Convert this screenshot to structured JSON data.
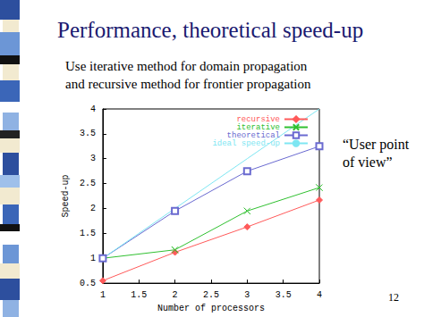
{
  "chart_data": {
    "type": "line",
    "title": "Performance, theoretical speed-up",
    "subtitle": [
      "Use iterative method for domain propagation",
      "and recursive method for frontier propagation"
    ],
    "x_label": "Number of processors",
    "y_label": "Speed-up",
    "annotations": [
      "“User point of view”",
      "12"
    ],
    "x": [
      1,
      2,
      3,
      4
    ],
    "series": [
      {
        "name": "recursive",
        "color": "#ff5a5a",
        "marker": "diamond",
        "values": [
          0.55,
          1.12,
          1.63,
          2.17
        ]
      },
      {
        "name": "iterative",
        "color": "#30c030",
        "marker": "cross",
        "values": [
          1.0,
          1.17,
          1.95,
          2.42
        ]
      },
      {
        "name": "theoretical",
        "color": "#6a6ad0",
        "marker": "square",
        "values": [
          1.0,
          1.95,
          2.75,
          3.25
        ]
      },
      {
        "name": "ideal speed-up",
        "color": "#7ee6f2",
        "marker": "none",
        "values": [
          1,
          2,
          3,
          4
        ]
      }
    ],
    "xlim": [
      1,
      4
    ],
    "xticks": [
      1,
      1.5,
      2,
      2.5,
      3,
      3.5,
      4
    ],
    "ylim": [
      0.5,
      4
    ],
    "yticks": [
      0.5,
      1,
      1.5,
      2,
      2.5,
      3,
      3.5,
      4
    ],
    "grid": false,
    "legend": "upper right"
  }
}
